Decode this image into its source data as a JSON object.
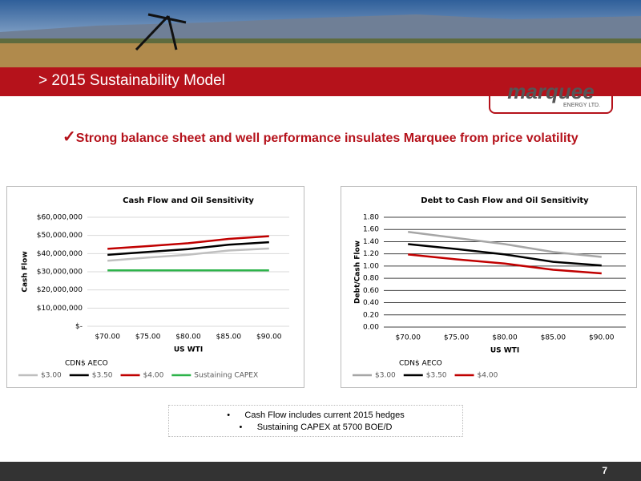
{
  "slide_title": "> 2015 Sustainability Model",
  "logo": {
    "name": "marquee",
    "sub": "ENERGY LTD."
  },
  "headline": "Strong balance sheet and well performance insulates Marquee from price volatility",
  "notes": [
    "Cash Flow includes current 2015 hedges",
    "Sustaining CAPEX at 5700 BOE/D"
  ],
  "page_number": "7",
  "chart_data": [
    {
      "type": "line",
      "title": "Cash Flow and Oil Sensitivity",
      "x_label": "US WTI",
      "y_label": "Cash Flow",
      "legend_title": "CDN$ AECO",
      "categories": [
        "$70.00",
        "$75.00",
        "$80.00",
        "$85.00",
        "$90.00"
      ],
      "series": [
        {
          "name": "$3.00",
          "color": "#bfbfbf",
          "values": [
            36100000,
            37800000,
            39400000,
            41700000,
            42800000
          ]
        },
        {
          "name": "$3.50",
          "color": "#000000",
          "values": [
            39300000,
            40900000,
            42500000,
            44900000,
            46300000
          ]
        },
        {
          "name": "$4.00",
          "color": "#c00000",
          "values": [
            42600000,
            44100000,
            45700000,
            48100000,
            49600000
          ]
        },
        {
          "name": "Sustaining CAPEX",
          "color": "#2db34a",
          "values": [
            30800000,
            30800000,
            30800000,
            30800000,
            30800000
          ]
        }
      ],
      "ylim": [
        0,
        60000000
      ],
      "yticks": [
        {
          "value": 0,
          "label": "$-"
        },
        {
          "value": 10000000,
          "label": "$10,000,000"
        },
        {
          "value": 20000000,
          "label": "$20,000,000"
        },
        {
          "value": 30000000,
          "label": "$30,000,000"
        },
        {
          "value": 40000000,
          "label": "$40,000,000"
        },
        {
          "value": 50000000,
          "label": "$50,000,000"
        },
        {
          "value": 60000000,
          "label": "$60,000,000"
        }
      ],
      "grid": true,
      "grid_color": "#d9d9d9",
      "legend": "bottom"
    },
    {
      "type": "line",
      "title": "Debt to Cash Flow and Oil Sensitivity",
      "x_label": "US WTI",
      "y_label": "Debt/Cash Flow",
      "legend_title": "CDN$ AECO",
      "categories": [
        "$70.00",
        "$75.00",
        "$80.00",
        "$85.00",
        "$90.00"
      ],
      "series": [
        {
          "name": "$3.00",
          "color": "#a6a6a6",
          "values": [
            1.56,
            1.46,
            1.36,
            1.23,
            1.15
          ]
        },
        {
          "name": "$3.50",
          "color": "#000000",
          "values": [
            1.36,
            1.28,
            1.19,
            1.07,
            1.01
          ]
        },
        {
          "name": "$4.00",
          "color": "#c00000",
          "values": [
            1.19,
            1.11,
            1.04,
            0.94,
            0.88
          ]
        }
      ],
      "ylim": [
        0,
        1.8
      ],
      "yticks": [
        {
          "value": 0,
          "label": "0.00"
        },
        {
          "value": 0.2,
          "label": "0.20"
        },
        {
          "value": 0.4,
          "label": "0.40"
        },
        {
          "value": 0.6,
          "label": "0.60"
        },
        {
          "value": 0.8,
          "label": "0.80"
        },
        {
          "value": 1,
          "label": "1.00"
        },
        {
          "value": 1.2,
          "label": "1.20"
        },
        {
          "value": 1.4,
          "label": "1.40"
        },
        {
          "value": 1.6,
          "label": "1.60"
        },
        {
          "value": 1.8,
          "label": "1.80"
        }
      ],
      "grid": true,
      "grid_color": "#404040",
      "legend": "bottom"
    }
  ]
}
